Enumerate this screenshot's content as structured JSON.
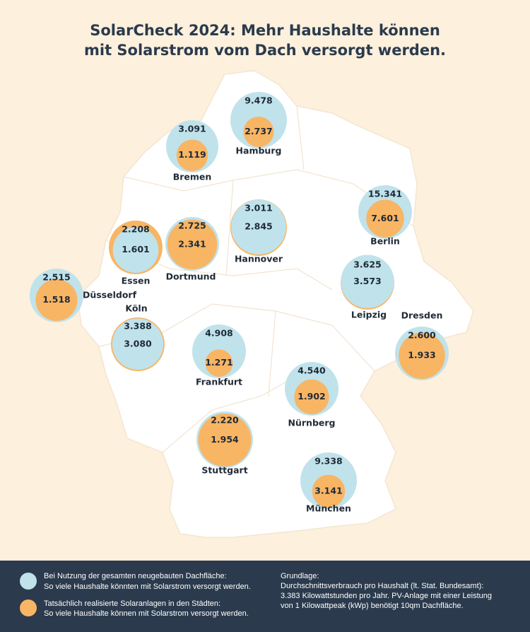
{
  "title": [
    "SolarCheck 2024: Mehr Haushalte können",
    "mit Solarstrom vom Dach versorgt werden."
  ],
  "colors": {
    "potential": "#c0e2eb",
    "actual": "#f8b564"
  },
  "cities": [
    {
      "name": "Hamburg",
      "potential": {
        "value": 9478,
        "label": "9.478"
      },
      "actual": {
        "value": 2737,
        "label": "2.737"
      }
    },
    {
      "name": "Bremen",
      "potential": {
        "value": 3091,
        "label": "3.091"
      },
      "actual": {
        "value": 1119,
        "label": "1.119"
      }
    },
    {
      "name": "Berlin",
      "potential": {
        "value": 15341,
        "label": "15.341"
      },
      "actual": {
        "value": 7601,
        "label": "7.601"
      }
    },
    {
      "name": "Hannover",
      "potential": {
        "value": 2845,
        "label": "2.845"
      },
      "actual": {
        "value": 3011,
        "label": "3.011"
      }
    },
    {
      "name": "Dortmund",
      "potential": {
        "value": 2725,
        "label": "2.725"
      },
      "actual": {
        "value": 2341,
        "label": "2.341"
      }
    },
    {
      "name": "Essen",
      "potential": {
        "value": 1601,
        "label": "1.601"
      },
      "actual": {
        "value": 2208,
        "label": "2.208"
      }
    },
    {
      "name": "Düsseldorf",
      "potential": {
        "value": 2515,
        "label": "2.515"
      },
      "actual": {
        "value": 1518,
        "label": "1.518"
      }
    },
    {
      "name": "Köln",
      "potential": {
        "value": 3080,
        "label": "3.080"
      },
      "actual": {
        "value": 3388,
        "label": "3.388"
      }
    },
    {
      "name": "Leipzig",
      "potential": {
        "value": 3573,
        "label": "3.573"
      },
      "actual": {
        "value": 3625,
        "label": "3.625"
      }
    },
    {
      "name": "Dresden",
      "potential": {
        "value": 2600,
        "label": "2.600"
      },
      "actual": {
        "value": 1933,
        "label": "1.933"
      }
    },
    {
      "name": "Frankfurt",
      "potential": {
        "value": 4908,
        "label": "4.908"
      },
      "actual": {
        "value": 1271,
        "label": "1.271"
      }
    },
    {
      "name": "Nürnberg",
      "potential": {
        "value": 4540,
        "label": "4.540"
      },
      "actual": {
        "value": 1902,
        "label": "1.902"
      }
    },
    {
      "name": "Stuttgart",
      "potential": {
        "value": 2220,
        "label": "2.220"
      },
      "actual": {
        "value": 1954,
        "label": "1.954"
      }
    },
    {
      "name": "München",
      "potential": {
        "value": 9338,
        "label": "9.338"
      },
      "actual": {
        "value": 3141,
        "label": "3.141"
      }
    }
  ],
  "legend": {
    "potential": [
      "Bei Nutzung der gesamten neugebauten Dachfläche:",
      "So viele Haushalte könnten mit Solarstrom versorgt werden."
    ],
    "actual": [
      "Tatsächlich realisierte Solaranlagen in den Städten:",
      "So viele Haushalte können mit Solarstrom versorgt werden."
    ]
  },
  "note": [
    "Grundlage:",
    "Durchschnittsverbrauch pro Haushalt (lt. Stat. Bundesamt):",
    "3.383 Kilowattstunden pro Jahr. PV-Anlage mit einer Leistung",
    "von 1 Kilowattpeak (kWp) benötigt 10qm Dachfläche."
  ]
}
